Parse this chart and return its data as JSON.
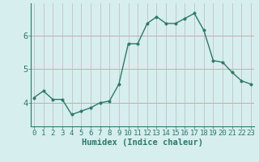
{
  "title": "",
  "xlabel": "Humidex (Indice chaleur)",
  "x_values": [
    0,
    1,
    2,
    3,
    4,
    5,
    6,
    7,
    8,
    9,
    10,
    11,
    12,
    13,
    14,
    15,
    16,
    17,
    18,
    19,
    20,
    21,
    22,
    23
  ],
  "y_values": [
    4.15,
    4.35,
    4.1,
    4.1,
    3.65,
    3.75,
    3.85,
    4.0,
    4.05,
    4.55,
    5.75,
    5.75,
    6.35,
    6.55,
    6.35,
    6.35,
    6.5,
    6.65,
    6.15,
    5.25,
    5.2,
    4.9,
    4.65,
    4.55
  ],
  "line_color": "#2a7a6a",
  "marker_color": "#2a7a6a",
  "bg_color": "#d6eeee",
  "grid_color_h": "#c4a0a0",
  "grid_color_v": "#c0b8b8",
  "axis_color": "#2a7a6a",
  "xlim": [
    -0.3,
    23.3
  ],
  "ylim": [
    3.3,
    6.95
  ],
  "yticks": [
    4,
    5,
    6
  ],
  "xticks": [
    0,
    1,
    2,
    3,
    4,
    5,
    6,
    7,
    8,
    9,
    10,
    11,
    12,
    13,
    14,
    15,
    16,
    17,
    18,
    19,
    20,
    21,
    22,
    23
  ],
  "tick_fontsize": 6.5,
  "label_fontsize": 7.5,
  "marker_size": 2.5,
  "line_width": 1.0
}
